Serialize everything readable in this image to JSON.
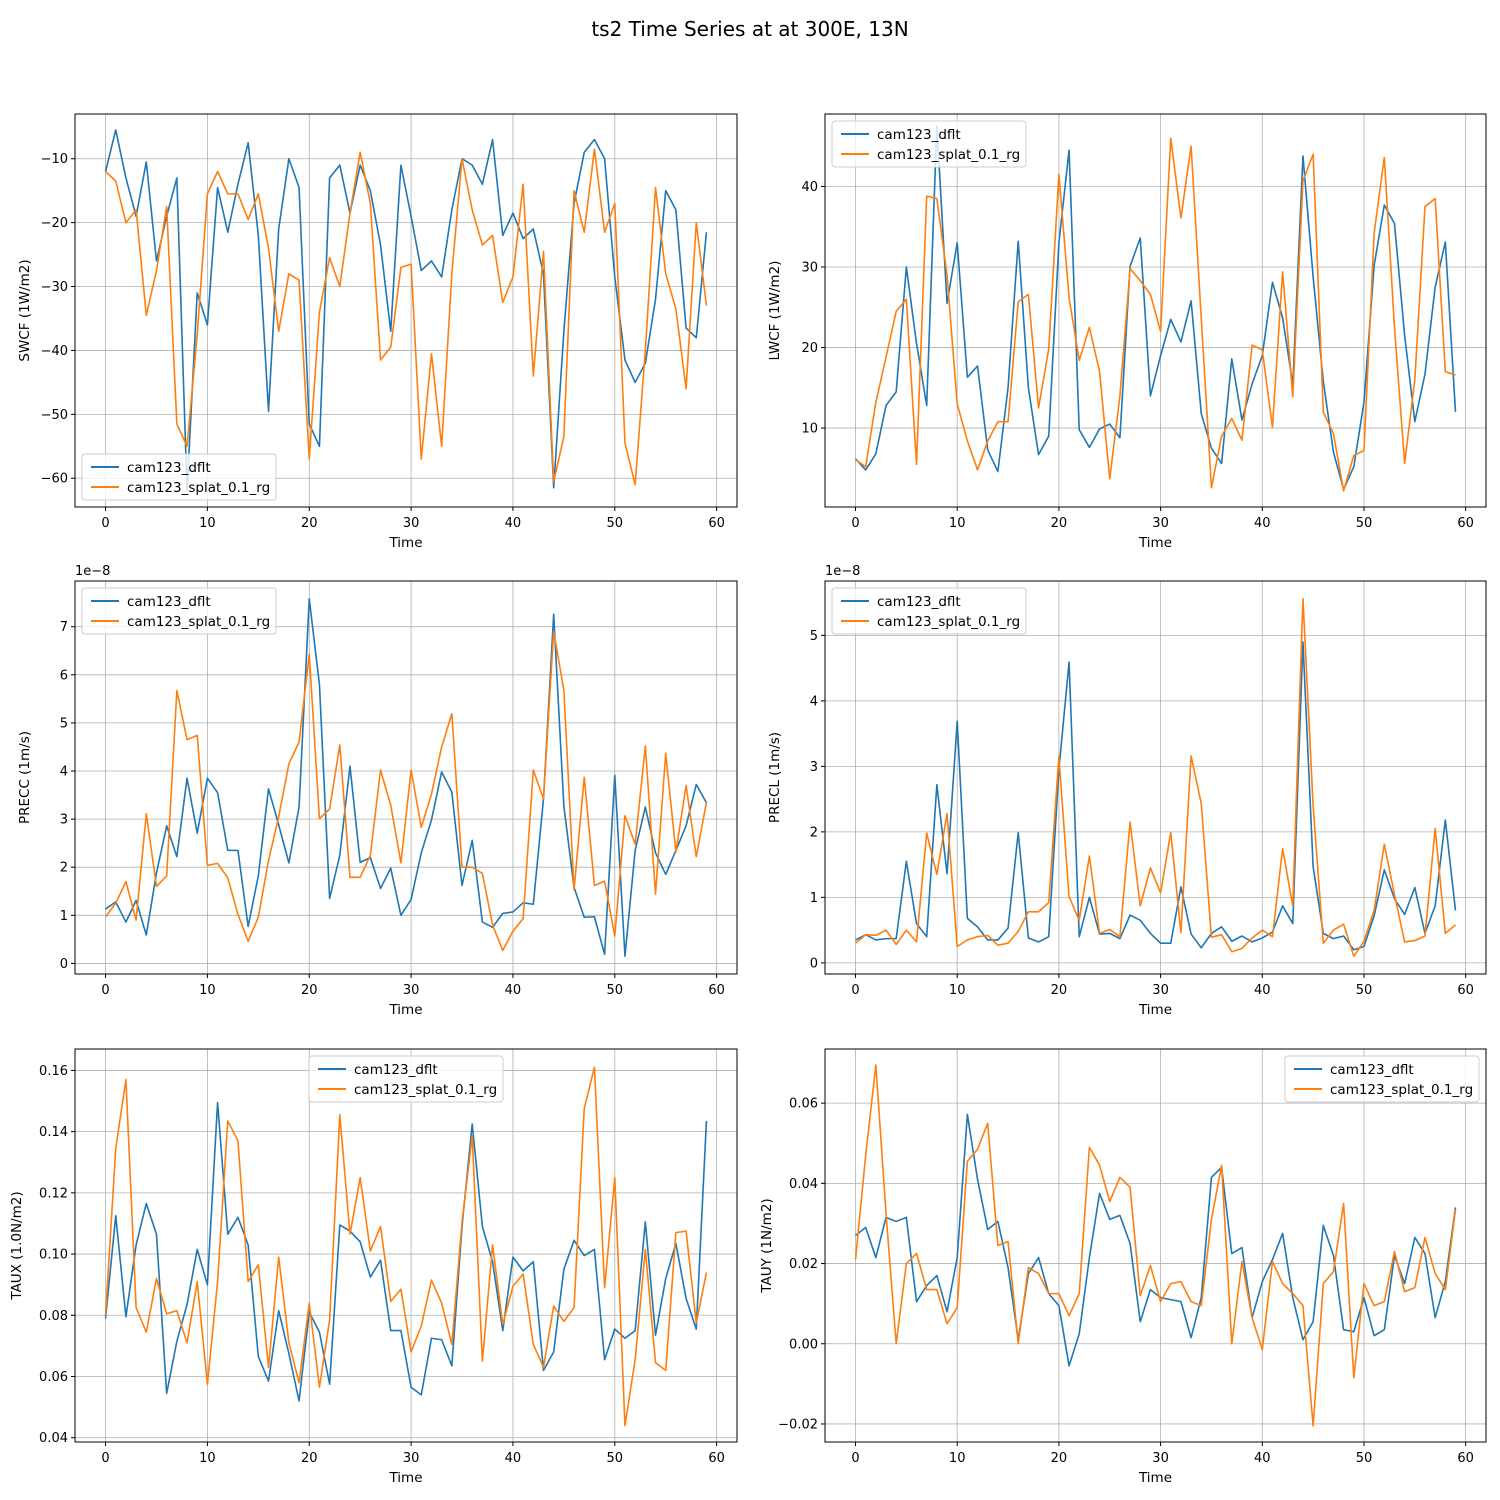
{
  "figure": {
    "title": "ts2 Time Series at at 300E, 13N"
  },
  "colors": {
    "series0": "#1f77b4",
    "series1": "#ff7f0e",
    "grid": "#b0b0b0",
    "axis": "#000000"
  },
  "chart_data": [
    {
      "type": "line",
      "title": "",
      "xlabel": "Time",
      "ylabel": "SWCF (1W/m2)",
      "multiplier": "",
      "xlim": [
        -3,
        62
      ],
      "ylim": [
        -64.5,
        -3
      ],
      "xticks": [
        0,
        10,
        20,
        30,
        40,
        50,
        60
      ],
      "yticks": [
        -60,
        -50,
        -40,
        -30,
        -20,
        -10
      ],
      "ytick_labels": [
        "−60",
        "−50",
        "−40",
        "−30",
        "−20",
        "−10"
      ],
      "grid": true,
      "legend_loc": "lower left",
      "series": [
        {
          "name": "cam123_dflt",
          "values": [
            -12,
            -5.5,
            -13,
            -19,
            -10.5,
            -26,
            -19,
            -13,
            -62,
            -31,
            -36,
            -14.5,
            -21.5,
            -14,
            -7.5,
            -22,
            -49.5,
            -21,
            -10,
            -14.5,
            -51.5,
            -55,
            -13,
            -11,
            -18.5,
            -11,
            -15,
            -23.5,
            -37,
            -11,
            -19,
            -27.5,
            -26,
            -28.5,
            -18,
            -10,
            -11,
            -14,
            -7,
            -22,
            -18.5,
            -22.5,
            -21,
            -28,
            -61.5,
            -37,
            -17,
            -9,
            -7,
            -10,
            -28.5,
            -41.5,
            -45,
            -42,
            -32,
            -15,
            -18,
            -36.5,
            -38,
            -21.5
          ]
        },
        {
          "name": "cam123_splat_0.1_rg",
          "values": [
            -12,
            -13.5,
            -20,
            -18,
            -34.5,
            -27.5,
            -17.5,
            -51.5,
            -55,
            -37.5,
            -15.5,
            -12,
            -15.5,
            -15.5,
            -19.5,
            -15.5,
            -24,
            -37,
            -28,
            -29,
            -57,
            -34,
            -25.5,
            -30,
            -18.5,
            -9,
            -17,
            -41.5,
            -39.5,
            -27,
            -26.5,
            -57,
            -40.5,
            -55,
            -28,
            -10,
            -18,
            -23.5,
            -22,
            -32.5,
            -28.5,
            -14,
            -44,
            -24.5,
            -60.5,
            -53.5,
            -15,
            -21.5,
            -8.5,
            -21.5,
            -17,
            -54.5,
            -61,
            -40,
            -14.5,
            -28,
            -33.5,
            -46,
            -20,
            -33
          ]
        }
      ]
    },
    {
      "type": "line",
      "title": "",
      "xlabel": "Time",
      "ylabel": "LWCF (1W/m2)",
      "multiplier": "",
      "xlim": [
        -3,
        62
      ],
      "ylim": [
        0.2,
        49
      ],
      "xticks": [
        0,
        10,
        20,
        30,
        40,
        50,
        60
      ],
      "yticks": [
        10,
        20,
        30,
        40
      ],
      "ytick_labels": [
        "10",
        "20",
        "30",
        "40"
      ],
      "grid": true,
      "legend_loc": "upper left",
      "series": [
        {
          "name": "cam123_dflt",
          "values": [
            6.2,
            4.8,
            6.8,
            12.8,
            14.5,
            30,
            20.5,
            12.8,
            47.5,
            25.5,
            33,
            16.3,
            17.7,
            7.3,
            4.6,
            15,
            33.2,
            15,
            6.7,
            9,
            33,
            44.5,
            9.8,
            7.6,
            9.9,
            10.5,
            8.8,
            30.1,
            33.6,
            14,
            19,
            23.5,
            20.7,
            25.8,
            11.8,
            7.5,
            5.6,
            18.6,
            11,
            15.5,
            19,
            28.1,
            23.7,
            15.4,
            43.8,
            28.8,
            15.8,
            7,
            2.4,
            5.2,
            13.2,
            30.2,
            37.7,
            35.4,
            21.5,
            10.8,
            16.7,
            27.5,
            33.1,
            12
          ]
        },
        {
          "name": "cam123_splat_0.1_rg",
          "values": [
            6.1,
            5.2,
            13.2,
            18.8,
            24.5,
            26,
            5.5,
            38.8,
            38.5,
            29,
            13,
            8.4,
            4.8,
            8.4,
            10.8,
            10.8,
            25.7,
            26.6,
            12.5,
            19.8,
            41.5,
            26.2,
            18.4,
            22.5,
            17,
            3.7,
            14,
            29.8,
            28.3,
            26.6,
            22,
            46,
            36.1,
            45,
            23.6,
            2.6,
            9,
            11.2,
            8.5,
            20.3,
            19.7,
            10.1,
            29.4,
            13.9,
            40.7,
            44,
            12,
            9.3,
            2.2,
            6.6,
            7.2,
            34.2,
            43.6,
            22.5,
            5.6,
            16,
            37.5,
            38.5,
            17,
            16.6
          ]
        }
      ]
    },
    {
      "type": "line",
      "title": "",
      "xlabel": "Time",
      "ylabel": "PRECC (1m/s)",
      "multiplier": "1e−8",
      "xlim": [
        -3,
        62
      ],
      "ylim": [
        -0.22,
        7.95
      ],
      "xticks": [
        0,
        10,
        20,
        30,
        40,
        50,
        60
      ],
      "yticks": [
        0,
        1,
        2,
        3,
        4,
        5,
        6,
        7
      ],
      "ytick_labels": [
        "0",
        "1",
        "2",
        "3",
        "4",
        "5",
        "6",
        "7"
      ],
      "grid": true,
      "legend_loc": "upper left",
      "series": [
        {
          "name": "cam123_dflt",
          "values": [
            1.13,
            1.28,
            0.86,
            1.31,
            0.59,
            1.88,
            2.86,
            2.22,
            3.85,
            2.71,
            3.85,
            3.55,
            2.35,
            2.35,
            0.77,
            1.82,
            3.63,
            2.88,
            2.09,
            3.25,
            7.58,
            5.8,
            1.35,
            2.25,
            4.1,
            2.1,
            2.2,
            1.56,
            1.98,
            1,
            1.33,
            2.3,
            2.98,
            3.98,
            3.56,
            1.62,
            2.56,
            0.86,
            0.75,
            1.04,
            1.07,
            1.26,
            1.23,
            3.42,
            7.26,
            3.27,
            1.58,
            0.96,
            0.97,
            0.19,
            3.91,
            0.15,
            2.35,
            3.25,
            2.3,
            1.85,
            2.35,
            2.86,
            3.72,
            3.34
          ]
        },
        {
          "name": "cam123_splat_0.1_rg",
          "values": [
            0.97,
            1.25,
            1.7,
            0.9,
            3.11,
            1.6,
            1.82,
            5.67,
            4.65,
            4.74,
            2.04,
            2.08,
            1.78,
            1.02,
            0.46,
            0.96,
            2.14,
            3.05,
            4.15,
            4.6,
            6.43,
            3.01,
            3.21,
            4.54,
            1.79,
            1.79,
            2.25,
            4.02,
            3.29,
            2.09,
            4.02,
            2.83,
            3.52,
            4.5,
            5.19,
            2,
            2,
            1.87,
            0.8,
            0.27,
            0.67,
            0.93,
            4.02,
            3.42,
            6.9,
            5.68,
            1.53,
            3.87,
            1.62,
            1.71,
            0.57,
            3.07,
            2.48,
            4.52,
            1.44,
            4.37,
            2.31,
            3.7,
            2.22,
            3.35
          ]
        }
      ]
    },
    {
      "type": "line",
      "title": "",
      "xlabel": "Time",
      "ylabel": "PRECL (1m/s)",
      "multiplier": "1e−8",
      "xlim": [
        -3,
        62
      ],
      "ylim": [
        -0.17,
        5.83
      ],
      "xticks": [
        0,
        10,
        20,
        30,
        40,
        50,
        60
      ],
      "yticks": [
        0,
        1,
        2,
        3,
        4,
        5
      ],
      "ytick_labels": [
        "0",
        "1",
        "2",
        "3",
        "4",
        "5"
      ],
      "grid": true,
      "legend_loc": "upper left",
      "series": [
        {
          "name": "cam123_dflt",
          "values": [
            0.35,
            0.43,
            0.35,
            0.37,
            0.37,
            1.55,
            0.6,
            0.4,
            2.72,
            1.36,
            3.69,
            0.68,
            0.55,
            0.35,
            0.35,
            0.53,
            1.99,
            0.38,
            0.32,
            0.4,
            2.95,
            4.59,
            0.4,
            1,
            0.44,
            0.45,
            0.37,
            0.73,
            0.65,
            0.45,
            0.3,
            0.3,
            1.16,
            0.44,
            0.23,
            0.45,
            0.55,
            0.33,
            0.41,
            0.32,
            0.38,
            0.47,
            0.87,
            0.6,
            4.9,
            1.47,
            0.45,
            0.37,
            0.41,
            0.2,
            0.25,
            0.72,
            1.42,
            0.98,
            0.74,
            1.15,
            0.45,
            0.87,
            2.18,
            0.8
          ]
        },
        {
          "name": "cam123_splat_0.1_rg",
          "values": [
            0.3,
            0.43,
            0.42,
            0.5,
            0.28,
            0.5,
            0.32,
            1.98,
            1.35,
            2.28,
            0.25,
            0.35,
            0.4,
            0.42,
            0.27,
            0.3,
            0.48,
            0.78,
            0.78,
            0.92,
            3.15,
            1.01,
            0.65,
            1.63,
            0.45,
            0.51,
            0.4,
            2.15,
            0.87,
            1.45,
            1.07,
            1.99,
            0.46,
            3.16,
            2.43,
            0.39,
            0.43,
            0.17,
            0.22,
            0.38,
            0.5,
            0.4,
            1.74,
            0.87,
            5.56,
            2.4,
            0.3,
            0.5,
            0.59,
            0.1,
            0.33,
            0.8,
            1.81,
            1.04,
            0.32,
            0.34,
            0.41,
            2.05,
            0.45,
            0.58
          ]
        }
      ]
    },
    {
      "type": "line",
      "title": "",
      "xlabel": "Time",
      "ylabel": "TAUX (1.0N/m2)",
      "multiplier": "",
      "xlim": [
        -3,
        62
      ],
      "ylim": [
        0.0386,
        0.167
      ],
      "xticks": [
        0,
        10,
        20,
        30,
        40,
        50,
        60
      ],
      "yticks": [
        0.04,
        0.06,
        0.08,
        0.1,
        0.12,
        0.14,
        0.16
      ],
      "ytick_labels": [
        "0.04",
        "0.06",
        "0.08",
        "0.10",
        "0.12",
        "0.14",
        "0.16"
      ],
      "grid": true,
      "legend_loc": "upper center",
      "series": [
        {
          "name": "cam123_dflt",
          "values": [
            0.079,
            0.1125,
            0.0795,
            0.103,
            0.1165,
            0.1065,
            0.0545,
            0.0715,
            0.0835,
            0.1015,
            0.09,
            0.1495,
            0.1065,
            0.112,
            0.103,
            0.0665,
            0.0585,
            0.0815,
            0.0675,
            0.052,
            0.081,
            0.0745,
            0.0575,
            0.1095,
            0.1075,
            0.104,
            0.0925,
            0.098,
            0.075,
            0.075,
            0.0565,
            0.054,
            0.0725,
            0.072,
            0.0635,
            0.109,
            0.1425,
            0.109,
            0.0975,
            0.075,
            0.099,
            0.0945,
            0.0975,
            0.062,
            0.068,
            0.095,
            0.1045,
            0.0995,
            0.1015,
            0.0655,
            0.0755,
            0.0725,
            0.075,
            0.1105,
            0.0735,
            0.092,
            0.1035,
            0.0855,
            0.0755,
            0.1435
          ]
        },
        {
          "name": "cam123_splat_0.1_rg",
          "values": [
            0.08,
            0.1345,
            0.157,
            0.0825,
            0.0745,
            0.092,
            0.0805,
            0.0815,
            0.071,
            0.091,
            0.0575,
            0.091,
            0.1435,
            0.137,
            0.091,
            0.0965,
            0.063,
            0.099,
            0.071,
            0.058,
            0.084,
            0.0565,
            0.0785,
            0.1455,
            0.1065,
            0.125,
            0.101,
            0.109,
            0.0845,
            0.0885,
            0.068,
            0.0765,
            0.0915,
            0.084,
            0.0705,
            0.1105,
            0.1385,
            0.065,
            0.103,
            0.077,
            0.0895,
            0.0935,
            0.0705,
            0.063,
            0.083,
            0.078,
            0.0825,
            0.1475,
            0.161,
            0.089,
            0.125,
            0.044,
            0.0655,
            0.1015,
            0.0645,
            0.062,
            0.107,
            0.1075,
            0.0775,
            0.094
          ]
        }
      ]
    },
    {
      "type": "line",
      "title": "",
      "xlabel": "Time",
      "ylabel": "TAUY (1N/m2)",
      "multiplier": "",
      "xlim": [
        -3,
        62
      ],
      "ylim": [
        -0.0245,
        0.0735
      ],
      "xticks": [
        0,
        10,
        20,
        30,
        40,
        50,
        60
      ],
      "yticks": [
        -0.02,
        0.0,
        0.02,
        0.04,
        0.06
      ],
      "ytick_labels": [
        "−0.02",
        "0.00",
        "0.02",
        "0.04",
        "0.06"
      ],
      "grid": true,
      "legend_loc": "upper right",
      "series": [
        {
          "name": "cam123_dflt",
          "values": [
            0.027,
            0.029,
            0.0215,
            0.0315,
            0.0305,
            0.0315,
            0.0105,
            0.0145,
            0.017,
            0.008,
            0.0215,
            0.0572,
            0.041,
            0.0285,
            0.0305,
            0.019,
            0.001,
            0.0175,
            0.0215,
            0.0125,
            0.0095,
            -0.0055,
            0.0025,
            0.0215,
            0.0375,
            0.031,
            0.032,
            0.025,
            0.0055,
            0.0135,
            0.0115,
            0.011,
            0.0105,
            0.0015,
            0.0115,
            0.0415,
            0.044,
            0.0225,
            0.024,
            0.0065,
            0.0155,
            0.021,
            0.0275,
            0.0115,
            0.001,
            0.0055,
            0.0295,
            0.022,
            0.0035,
            0.003,
            0.0115,
            0.002,
            0.0035,
            0.022,
            0.015,
            0.0265,
            0.0225,
            0.0065,
            0.0155,
            0.034
          ]
        },
        {
          "name": "cam123_splat_0.1_rg",
          "values": [
            0.021,
            0.047,
            0.0695,
            0.0325,
            0,
            0.02,
            0.0225,
            0.0135,
            0.0135,
            0.005,
            0.009,
            0.0455,
            0.0485,
            0.055,
            0.0245,
            0.0255,
            0,
            0.019,
            0.0175,
            0.0125,
            0.0125,
            0.007,
            0.0125,
            0.049,
            0.0445,
            0.0355,
            0.0415,
            0.039,
            0.012,
            0.0195,
            0.0105,
            0.015,
            0.0155,
            0.0105,
            0.0095,
            0.031,
            0.0445,
            0,
            0.0205,
            0.0065,
            -0.0015,
            0.0205,
            0.015,
            0.0125,
            0.0095,
            -0.0205,
            0.015,
            0.018,
            0.035,
            -0.0085,
            0.015,
            0.0095,
            0.0105,
            0.023,
            0.013,
            0.014,
            0.0265,
            0.0175,
            0.0135,
            0.0335
          ]
        }
      ]
    }
  ]
}
